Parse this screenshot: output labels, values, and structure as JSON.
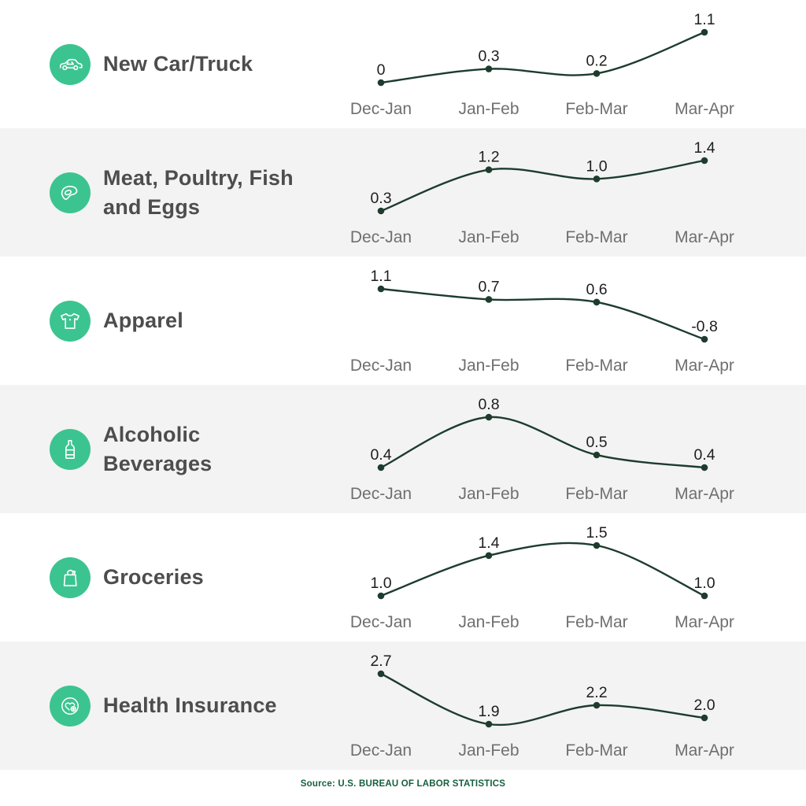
{
  "page": {
    "background": "#ffffff",
    "alt_row_background": "#f3f3f3"
  },
  "colors": {
    "accent_green": "#3cc490",
    "line_green": "#1d3c2e",
    "title_gray": "#4d4d4d",
    "axis_label_gray": "#6f6f6f",
    "value_label_dark": "#1e1e1e",
    "source_green": "#15603e"
  },
  "chart_data": {
    "type": "line",
    "categories": [
      "Dec-Jan",
      "Jan-Feb",
      "Feb-Mar",
      "Mar-Apr"
    ],
    "series": [
      {
        "name": "New Car/Truck",
        "icon": "car-icon",
        "values": [
          0,
          0.3,
          0.2,
          1.1
        ],
        "labels": [
          "0",
          "0.3",
          "0.2",
          "1.1"
        ]
      },
      {
        "name": "Meat, Poultry, Fish and Eggs",
        "icon": "meat-icon",
        "values": [
          0.3,
          1.2,
          1.0,
          1.4
        ],
        "labels": [
          "0.3",
          "1.2",
          "1.0",
          "1.4"
        ]
      },
      {
        "name": "Apparel",
        "icon": "tshirt-icon",
        "values": [
          1.1,
          0.7,
          0.6,
          -0.8
        ],
        "labels": [
          "1.1",
          "0.7",
          "0.6",
          "-0.8"
        ]
      },
      {
        "name": "Alcoholic Beverages",
        "icon": "bottle-icon",
        "values": [
          0.4,
          0.8,
          0.5,
          0.4
        ],
        "labels": [
          "0.4",
          "0.8",
          "0.5",
          "0.4"
        ]
      },
      {
        "name": "Groceries",
        "icon": "bag-icon",
        "values": [
          1.0,
          1.4,
          1.5,
          1.0
        ],
        "labels": [
          "1.0",
          "1.4",
          "1.5",
          "1.0"
        ]
      },
      {
        "name": "Health Insurance",
        "icon": "health-icon",
        "values": [
          2.7,
          1.9,
          2.2,
          2.0
        ],
        "labels": [
          "2.7",
          "1.9",
          "2.2",
          "2.0"
        ]
      }
    ],
    "legend": "none",
    "grid": false,
    "value_labels_shown": true
  },
  "footer": {
    "source": "Source: U.S. BUREAU OF LABOR STATISTICS"
  }
}
